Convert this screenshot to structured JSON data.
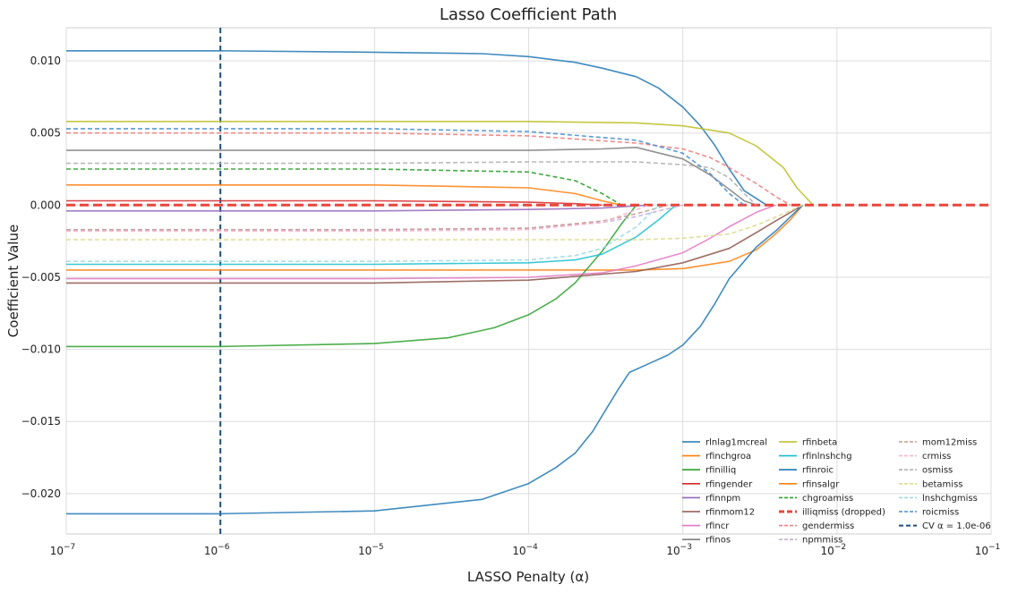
{
  "chart_data": {
    "type": "line",
    "title": "Lasso Coefficient Path",
    "xlabel": "LASSO Penalty (α)",
    "ylabel": "Coefficient Value",
    "xscale": "log",
    "xlim": [
      1e-07,
      0.1
    ],
    "ylim": [
      -0.0228,
      0.0123
    ],
    "x_ticks": [
      {
        "value": 1e-07,
        "base": "10",
        "exp": "−7"
      },
      {
        "value": 1e-06,
        "base": "10",
        "exp": "−6"
      },
      {
        "value": 1e-05,
        "base": "10",
        "exp": "−5"
      },
      {
        "value": 0.0001,
        "base": "10",
        "exp": "−4"
      },
      {
        "value": 0.001,
        "base": "10",
        "exp": "−3"
      },
      {
        "value": 0.01,
        "base": "10",
        "exp": "−2"
      },
      {
        "value": 0.1,
        "base": "10",
        "exp": "−1"
      }
    ],
    "y_ticks": [
      {
        "value": 0.01,
        "label": "0.010"
      },
      {
        "value": 0.005,
        "label": "0.005"
      },
      {
        "value": 0.0,
        "label": "0.000"
      },
      {
        "value": -0.005,
        "label": "−0.005"
      },
      {
        "value": -0.01,
        "label": "−0.010"
      },
      {
        "value": -0.015,
        "label": "−0.015"
      },
      {
        "value": -0.02,
        "label": "−0.020"
      }
    ],
    "grid": true,
    "legend_position": "bottom-right",
    "legend_columns": 3,
    "cv_line": {
      "name": "CV α = 1.0e-06",
      "x": 1e-06,
      "color": "#1f4e79"
    },
    "series": [
      {
        "name": "rlnlag1mcreal",
        "color": "#1f77b4",
        "dash": "solid",
        "points": [
          [
            1e-07,
            0.0107
          ],
          [
            1e-06,
            0.0107
          ],
          [
            1e-05,
            0.0106
          ],
          [
            5e-05,
            0.0105
          ],
          [
            0.0001,
            0.0103
          ],
          [
            0.0002,
            0.0099
          ],
          [
            0.0003,
            0.0095
          ],
          [
            0.0005,
            0.0089
          ],
          [
            0.0007,
            0.0081
          ],
          [
            0.001,
            0.0068
          ],
          [
            0.0013,
            0.0055
          ],
          [
            0.0016,
            0.0042
          ],
          [
            0.002,
            0.0025
          ],
          [
            0.0025,
            0.001
          ],
          [
            0.0035,
            0.0
          ]
        ]
      },
      {
        "name": "rfinchgroa",
        "color": "#ff7f0e",
        "dash": "solid",
        "points": [
          [
            1e-07,
            -0.0045
          ],
          [
            1e-05,
            -0.0045
          ],
          [
            0.0001,
            -0.0045
          ],
          [
            0.0005,
            -0.0045
          ],
          [
            0.001,
            -0.0044
          ],
          [
            0.002,
            -0.0039
          ],
          [
            0.003,
            -0.0031
          ],
          [
            0.004,
            -0.002
          ],
          [
            0.005,
            -0.001
          ],
          [
            0.006,
            0.0
          ]
        ]
      },
      {
        "name": "rfinilliq",
        "color": "#2ca02c",
        "dash": "solid",
        "points": [
          [
            1e-07,
            -0.0098
          ],
          [
            1e-06,
            -0.0098
          ],
          [
            1e-05,
            -0.0096
          ],
          [
            3e-05,
            -0.0092
          ],
          [
            6e-05,
            -0.0085
          ],
          [
            0.0001,
            -0.0076
          ],
          [
            0.00015,
            -0.0065
          ],
          [
            0.0002,
            -0.0054
          ],
          [
            0.0003,
            -0.0032
          ],
          [
            0.0004,
            -0.0013
          ],
          [
            0.0005,
            0.0
          ]
        ]
      },
      {
        "name": "rfingender",
        "color": "#d62728",
        "dash": "solid",
        "points": [
          [
            1e-07,
            0.0003
          ],
          [
            1e-05,
            0.0003
          ],
          [
            0.0001,
            0.0002
          ],
          [
            0.0002,
            0.0001
          ],
          [
            0.0003,
            0.0
          ]
        ]
      },
      {
        "name": "rfinnpm",
        "color": "#9467bd",
        "dash": "solid",
        "points": [
          [
            1e-07,
            -0.0004
          ],
          [
            1e-05,
            -0.0004
          ],
          [
            0.0001,
            -0.0003
          ],
          [
            0.0003,
            -0.0002
          ],
          [
            0.0006,
            0.0
          ]
        ]
      },
      {
        "name": "rfinmom12",
        "color": "#8c564b",
        "dash": "solid",
        "points": [
          [
            1e-07,
            -0.0054
          ],
          [
            1e-05,
            -0.0054
          ],
          [
            0.0001,
            -0.0052
          ],
          [
            0.0005,
            -0.0046
          ],
          [
            0.001,
            -0.004
          ],
          [
            0.002,
            -0.003
          ],
          [
            0.003,
            -0.0019
          ],
          [
            0.004,
            -0.0011
          ],
          [
            0.005,
            -0.0005
          ],
          [
            0.006,
            0.0
          ]
        ]
      },
      {
        "name": "rfincr",
        "color": "#e377c2",
        "dash": "solid",
        "points": [
          [
            1e-07,
            -0.0051
          ],
          [
            1e-05,
            -0.0051
          ],
          [
            0.0001,
            -0.005
          ],
          [
            0.0003,
            -0.0047
          ],
          [
            0.0005,
            -0.0042
          ],
          [
            0.001,
            -0.0033
          ],
          [
            0.0015,
            -0.0023
          ],
          [
            0.002,
            -0.0015
          ],
          [
            0.003,
            -0.0005
          ],
          [
            0.004,
            0.0
          ]
        ]
      },
      {
        "name": "rfinos",
        "color": "#7f7f7f",
        "dash": "solid",
        "points": [
          [
            1e-07,
            0.0038
          ],
          [
            1e-05,
            0.0038
          ],
          [
            0.0001,
            0.0038
          ],
          [
            0.0003,
            0.0039
          ],
          [
            0.0005,
            0.004
          ],
          [
            0.001,
            0.0032
          ],
          [
            0.0015,
            0.0021
          ],
          [
            0.002,
            0.0011
          ],
          [
            0.0025,
            0.0003
          ],
          [
            0.003,
            0.0
          ]
        ]
      },
      {
        "name": "rfinbeta",
        "color": "#bcbd22",
        "dash": "solid",
        "points": [
          [
            1e-07,
            0.0058
          ],
          [
            1e-05,
            0.0058
          ],
          [
            0.0001,
            0.0058
          ],
          [
            0.0005,
            0.0057
          ],
          [
            0.001,
            0.0055
          ],
          [
            0.002,
            0.005
          ],
          [
            0.003,
            0.0041
          ],
          [
            0.0045,
            0.0026
          ],
          [
            0.0055,
            0.0012
          ],
          [
            0.007,
            0.0
          ]
        ]
      },
      {
        "name": "rfinlnshchg",
        "color": "#17becf",
        "dash": "solid",
        "points": [
          [
            1e-07,
            -0.0041
          ],
          [
            1e-05,
            -0.0041
          ],
          [
            0.0001,
            -0.004
          ],
          [
            0.0002,
            -0.0038
          ],
          [
            0.0003,
            -0.0034
          ],
          [
            0.0005,
            -0.0022
          ],
          [
            0.0007,
            -0.001
          ],
          [
            0.0009,
            0.0
          ]
        ]
      },
      {
        "name": "rfinroic",
        "color": "#1f77b4",
        "dash": "solid",
        "points": [
          [
            1e-07,
            -0.0214
          ],
          [
            1e-06,
            -0.0214
          ],
          [
            1e-05,
            -0.0212
          ],
          [
            5e-05,
            -0.0204
          ],
          [
            0.0001,
            -0.0193
          ],
          [
            0.00015,
            -0.0182
          ],
          [
            0.0002,
            -0.0172
          ],
          [
            0.00026,
            -0.0157
          ],
          [
            0.00032,
            -0.0141
          ],
          [
            0.00038,
            -0.0128
          ],
          [
            0.00045,
            -0.0116
          ],
          [
            0.0006,
            -0.011
          ],
          [
            0.0008,
            -0.0104
          ],
          [
            0.001,
            -0.0097
          ],
          [
            0.0013,
            -0.0084
          ],
          [
            0.0016,
            -0.0069
          ],
          [
            0.002,
            -0.0051
          ],
          [
            0.0025,
            -0.0039
          ],
          [
            0.003,
            -0.0029
          ],
          [
            0.004,
            -0.0018
          ],
          [
            0.005,
            -0.0008
          ],
          [
            0.006,
            0.0
          ]
        ]
      },
      {
        "name": "rfinsalgr",
        "color": "#ff7f0e",
        "dash": "solid",
        "points": [
          [
            1e-07,
            0.0014
          ],
          [
            1e-05,
            0.0014
          ],
          [
            0.0001,
            0.0012
          ],
          [
            0.0002,
            0.0008
          ],
          [
            0.0003,
            0.0003
          ],
          [
            0.0004,
            0.0
          ]
        ]
      },
      {
        "name": "chgroamiss",
        "color": "#2ca02c",
        "dash": "dashed",
        "points": [
          [
            1e-07,
            0.0025
          ],
          [
            1e-05,
            0.0025
          ],
          [
            0.0001,
            0.0023
          ],
          [
            0.0002,
            0.0017
          ],
          [
            0.0003,
            0.0008
          ],
          [
            0.0004,
            0.0
          ]
        ]
      },
      {
        "name": "illiqmiss (dropped)",
        "color": "#e8453c",
        "dash": "dropped",
        "points": [
          [
            1e-07,
            0.0
          ],
          [
            0.1,
            0.0
          ]
        ]
      },
      {
        "name": "gendermiss",
        "color": "#f08080",
        "dash": "dashed",
        "points": [
          [
            1e-07,
            0.005
          ],
          [
            1e-05,
            0.005
          ],
          [
            0.0001,
            0.0048
          ],
          [
            0.0005,
            0.0043
          ],
          [
            0.001,
            0.0039
          ],
          [
            0.0015,
            0.0033
          ],
          [
            0.002,
            0.0026
          ],
          [
            0.003,
            0.0015
          ],
          [
            0.004,
            0.0006
          ],
          [
            0.005,
            0.0
          ]
        ]
      },
      {
        "name": "npmmiss",
        "color": "#c5b0d5",
        "dash": "dashed",
        "points": [
          [
            1e-07,
            -0.0017
          ],
          [
            1e-05,
            -0.0017
          ],
          [
            0.0001,
            -0.0016
          ],
          [
            0.0003,
            -0.0012
          ],
          [
            0.0005,
            -0.0008
          ],
          [
            0.0007,
            -0.0004
          ],
          [
            0.001,
            0.0
          ]
        ]
      },
      {
        "name": "mom12miss",
        "color": "#c49c94",
        "dash": "dashed",
        "points": [
          [
            1e-07,
            -0.0017
          ],
          [
            1e-05,
            -0.0017
          ],
          [
            0.0001,
            -0.0016
          ],
          [
            0.0003,
            -0.0011
          ],
          [
            0.0005,
            -0.0006
          ],
          [
            0.0008,
            0.0
          ]
        ]
      },
      {
        "name": "crmiss",
        "color": "#f7b6d2",
        "dash": "dashed",
        "points": [
          [
            1e-07,
            -0.0018
          ],
          [
            1e-05,
            -0.0018
          ],
          [
            0.0001,
            -0.0017
          ],
          [
            0.0003,
            -0.0012
          ],
          [
            0.0004,
            -0.0007
          ],
          [
            0.0006,
            0.0
          ]
        ]
      },
      {
        "name": "osmiss",
        "color": "#b0b0b0",
        "dash": "dashed",
        "points": [
          [
            1e-07,
            0.0029
          ],
          [
            1e-05,
            0.0029
          ],
          [
            0.0001,
            0.003
          ],
          [
            0.0005,
            0.003
          ],
          [
            0.001,
            0.0028
          ],
          [
            0.0015,
            0.0026
          ],
          [
            0.002,
            0.0019
          ],
          [
            0.0025,
            0.0008
          ],
          [
            0.003,
            0.0
          ]
        ]
      },
      {
        "name": "betamiss",
        "color": "#dbdb8d",
        "dash": "dashed",
        "points": [
          [
            1e-07,
            -0.0024
          ],
          [
            1e-05,
            -0.0024
          ],
          [
            0.0001,
            -0.0024
          ],
          [
            0.0005,
            -0.0024
          ],
          [
            0.001,
            -0.0023
          ],
          [
            0.002,
            -0.002
          ],
          [
            0.003,
            -0.0014
          ],
          [
            0.0045,
            -0.0006
          ],
          [
            0.006,
            0.0
          ]
        ]
      },
      {
        "name": "lnshchgmiss",
        "color": "#9edae5",
        "dash": "dashed",
        "points": [
          [
            1e-07,
            -0.0039
          ],
          [
            1e-05,
            -0.0039
          ],
          [
            0.0001,
            -0.0038
          ],
          [
            0.0002,
            -0.0035
          ],
          [
            0.0003,
            -0.003
          ],
          [
            0.0005,
            -0.0015
          ],
          [
            0.0007,
            0.0
          ]
        ]
      },
      {
        "name": "roicmiss",
        "color": "#4a8fd1",
        "dash": "dashed",
        "points": [
          [
            1e-07,
            0.0053
          ],
          [
            1e-05,
            0.0053
          ],
          [
            0.0001,
            0.0051
          ],
          [
            0.0005,
            0.0045
          ],
          [
            0.001,
            0.0036
          ],
          [
            0.0015,
            0.0022
          ],
          [
            0.002,
            0.0008
          ],
          [
            0.0025,
            0.0
          ]
        ]
      }
    ]
  }
}
